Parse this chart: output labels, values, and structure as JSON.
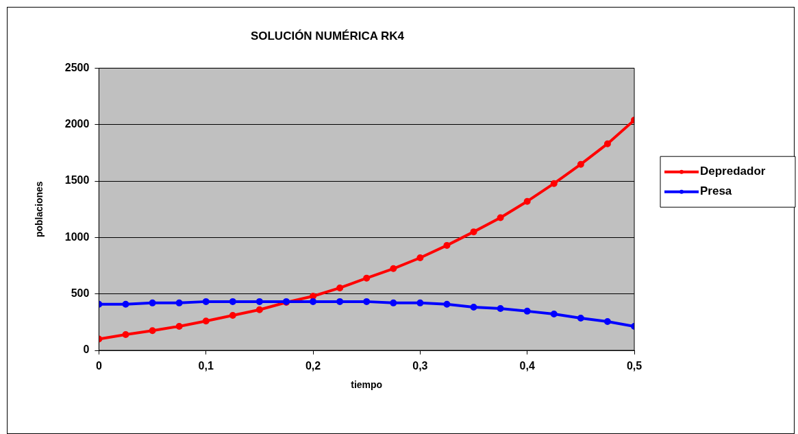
{
  "chart_data": {
    "type": "line",
    "title": "SOLUCIÓN NUMÉRICA RK4",
    "xlabel": "tiempo",
    "ylabel": "poblaciones",
    "x": [
      0,
      0.025,
      0.05,
      0.075,
      0.1,
      0.125,
      0.15,
      0.175,
      0.2,
      0.225,
      0.25,
      0.275,
      0.3,
      0.325,
      0.35,
      0.375,
      0.4,
      0.425,
      0.45,
      0.475,
      0.5
    ],
    "series": [
      {
        "name": "Depredador",
        "color": "#ff0000",
        "values": [
          100,
          140,
          175,
          213,
          260,
          310,
          360,
          425,
          480,
          553,
          640,
          724,
          820,
          930,
          1050,
          1175,
          1320,
          1478,
          1648,
          1830,
          2040
        ]
      },
      {
        "name": "Presa",
        "color": "#0000ff",
        "values": [
          408,
          408,
          420,
          420,
          432,
          432,
          432,
          432,
          432,
          432,
          432,
          420,
          420,
          408,
          383,
          371,
          347,
          322,
          286,
          255,
          213
        ]
      }
    ],
    "xlim": [
      0,
      0.5
    ],
    "xticks": [
      {
        "value": 0,
        "label": "0"
      },
      {
        "value": 0.1,
        "label": "0,1"
      },
      {
        "value": 0.2,
        "label": "0,2"
      },
      {
        "value": 0.3,
        "label": "0,3"
      },
      {
        "value": 0.4,
        "label": "0,4"
      },
      {
        "value": 0.5,
        "label": "0,5"
      }
    ],
    "ylim": [
      0,
      2500
    ],
    "yticks": [
      0,
      500,
      1000,
      1500,
      2000,
      2500
    ],
    "grid": "y",
    "legend": "right",
    "marker": "circle",
    "line_style": "solid"
  }
}
